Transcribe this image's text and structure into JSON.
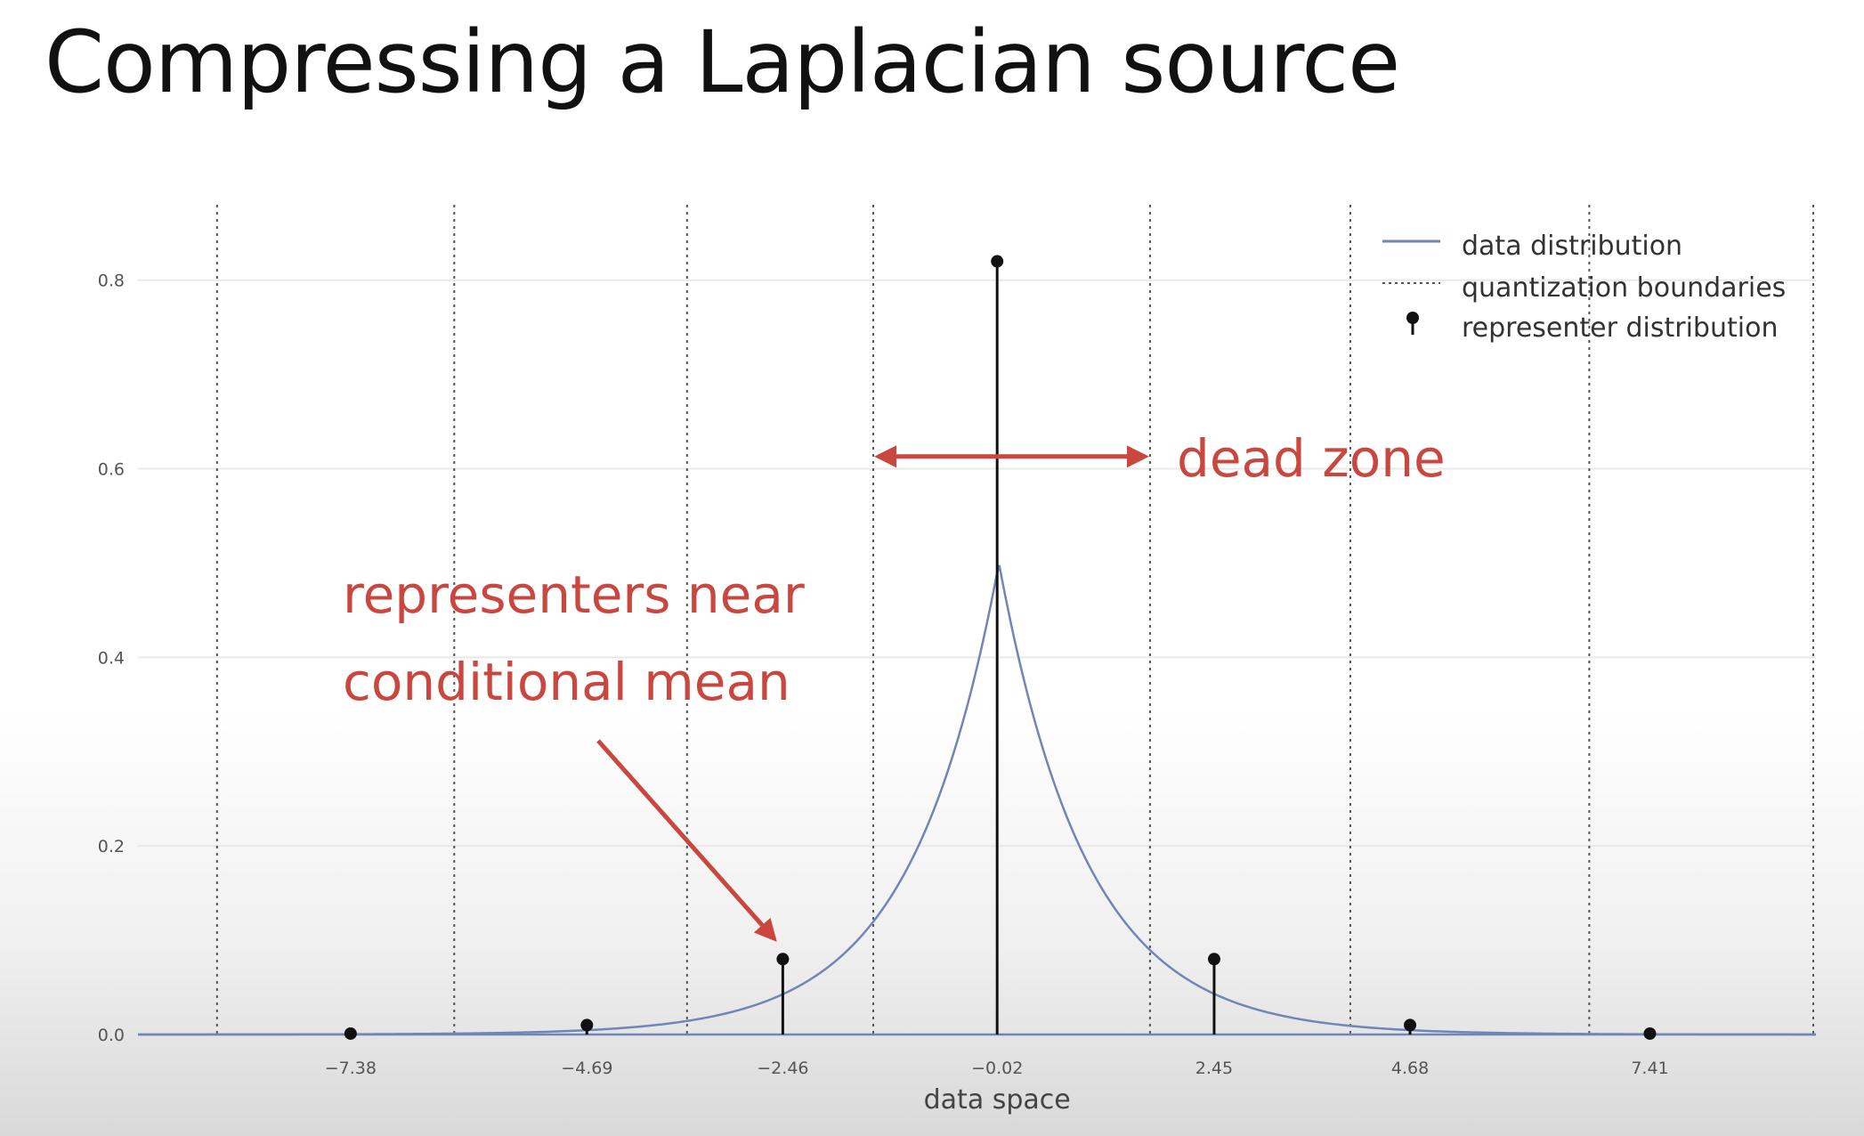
{
  "slide": {
    "title": "Compressing a Laplacian source"
  },
  "chart_data": {
    "type": "line",
    "title": "",
    "xlabel": "data space",
    "ylabel": "",
    "xlim": [
      -9.8,
      9.3
    ],
    "ylim": [
      0,
      0.88
    ],
    "grid": true,
    "legend_position": "top-right",
    "y_ticks": [
      0.0,
      0.2,
      0.4,
      0.6,
      0.8
    ],
    "y_tick_labels": [
      "0.0",
      "0.2",
      "0.4",
      "0.6",
      "0.8"
    ],
    "x_ticks": [
      -7.38,
      -4.69,
      -2.46,
      -0.02,
      2.45,
      4.68,
      7.41
    ],
    "x_tick_labels": [
      "−7.38",
      "−4.69",
      "−2.46",
      "−0.02",
      "2.45",
      "4.68",
      "7.41"
    ],
    "series": [
      {
        "name": "data distribution",
        "kind": "line",
        "color": "#6f86b6",
        "distribution": "laplace",
        "location": 0,
        "scale": 1,
        "peak": 0.5
      },
      {
        "name": "quantization boundaries",
        "kind": "vlines",
        "color": "#555555",
        "x": [
          -8.9,
          -6.2,
          -3.55,
          -1.43,
          1.72,
          4.0,
          6.72,
          9.27
        ]
      },
      {
        "name": "representer distribution",
        "kind": "stem",
        "color": "#111111",
        "x": [
          -7.38,
          -4.69,
          -2.46,
          -0.02,
          2.45,
          4.68,
          7.41
        ],
        "y": [
          0.001,
          0.01,
          0.08,
          0.82,
          0.08,
          0.01,
          0.001
        ]
      }
    ],
    "annotations": [
      {
        "id": "dead-zone",
        "text": [
          "dead zone"
        ],
        "color": "#c9473f",
        "arrow": "double",
        "x_from": -1.43,
        "x_to": 1.72,
        "y": 0.613
      },
      {
        "id": "conditional-mean",
        "text": [
          "representers near",
          "conditional mean"
        ],
        "color": "#c9473f",
        "arrow": "pointer",
        "target_x": -2.5,
        "target_y": 0.1
      }
    ]
  }
}
